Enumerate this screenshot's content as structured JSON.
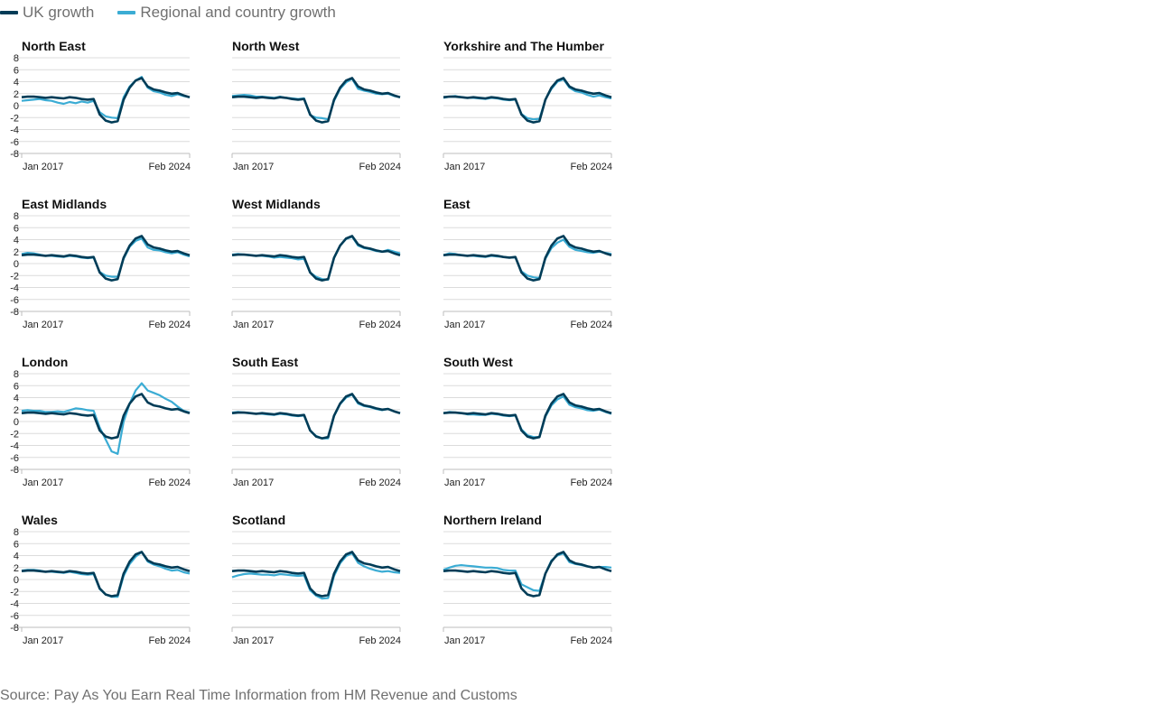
{
  "legend": {
    "uk_label": "UK growth",
    "region_label": "Regional and country growth"
  },
  "colors": {
    "uk": "#003c57",
    "region": "#3bacd4",
    "grid": "#dcdcdc",
    "source_text": "#707070"
  },
  "source": "Source: Pay As You Earn Real Time Information from HM Revenue and Customs",
  "chart_data": {
    "type": "line",
    "layout": "small-multiples 4x3",
    "x_tick_labels": [
      "Jan 2017",
      "Feb 2024"
    ],
    "x": [
      "Jan 2017",
      "Apr 2017",
      "Jul 2017",
      "Oct 2017",
      "Jan 2018",
      "Apr 2018",
      "Jul 2018",
      "Oct 2018",
      "Jan 2019",
      "Apr 2019",
      "Jul 2019",
      "Oct 2019",
      "Jan 2020",
      "Apr 2020",
      "Jul 2020",
      "Oct 2020",
      "Jan 2021",
      "Apr 2021",
      "Jul 2021",
      "Oct 2021",
      "Jan 2022",
      "Apr 2022",
      "Jul 2022",
      "Oct 2022",
      "Jan 2023",
      "Apr 2023",
      "Jul 2023",
      "Oct 2023",
      "Feb 2024"
    ],
    "ylim": [
      -8,
      8
    ],
    "y_ticks": [
      -8,
      -6,
      -4,
      -2,
      0,
      2,
      4,
      6,
      8
    ],
    "grid": true,
    "legend_position": "top-left",
    "uk_series": [
      1.4,
      1.5,
      1.5,
      1.4,
      1.3,
      1.4,
      1.3,
      1.2,
      1.4,
      1.3,
      1.1,
      1.0,
      1.1,
      -1.5,
      -2.5,
      -2.8,
      -2.6,
      1.0,
      3.0,
      4.2,
      4.6,
      3.2,
      2.7,
      2.5,
      2.2,
      2.0,
      2.1,
      1.7,
      1.4
    ],
    "panels": [
      {
        "title": "North East",
        "values": [
          0.8,
          0.9,
          1.0,
          1.1,
          0.9,
          0.8,
          0.5,
          0.3,
          0.6,
          0.4,
          0.7,
          0.5,
          0.8,
          -1.1,
          -1.8,
          -2.0,
          -2.1,
          1.4,
          3.2,
          4.2,
          4.8,
          3.0,
          2.4,
          2.2,
          1.8,
          1.6,
          1.9,
          1.6,
          1.4
        ]
      },
      {
        "title": "North West",
        "values": [
          1.6,
          1.7,
          1.8,
          1.7,
          1.5,
          1.5,
          1.4,
          1.3,
          1.5,
          1.3,
          1.2,
          1.1,
          1.2,
          -1.6,
          -2.0,
          -2.1,
          -2.3,
          0.8,
          2.8,
          3.9,
          4.5,
          2.8,
          2.5,
          2.3,
          2.0,
          1.9,
          2.0,
          1.6,
          1.4
        ]
      },
      {
        "title": "Yorkshire and The Humber",
        "values": [
          1.3,
          1.5,
          1.6,
          1.4,
          1.3,
          1.3,
          1.2,
          1.1,
          1.3,
          1.2,
          1.0,
          0.9,
          1.0,
          -1.4,
          -2.1,
          -2.3,
          -2.2,
          1.0,
          2.8,
          4.0,
          4.4,
          3.0,
          2.4,
          2.2,
          1.8,
          1.5,
          1.7,
          1.4,
          1.2
        ]
      },
      {
        "title": "East Midlands",
        "values": [
          1.6,
          1.8,
          1.7,
          1.5,
          1.3,
          1.3,
          1.2,
          1.1,
          1.3,
          1.2,
          1.0,
          0.9,
          1.0,
          -1.4,
          -2.0,
          -2.2,
          -2.2,
          0.8,
          2.8,
          3.8,
          4.2,
          2.7,
          2.3,
          2.2,
          1.9,
          1.7,
          1.9,
          1.5,
          1.2
        ]
      },
      {
        "title": "West Midlands",
        "values": [
          1.5,
          1.6,
          1.5,
          1.4,
          1.3,
          1.3,
          1.2,
          1.0,
          1.1,
          1.0,
          0.9,
          0.7,
          0.8,
          -1.5,
          -2.2,
          -2.6,
          -2.7,
          0.9,
          3.0,
          4.1,
          4.5,
          3.0,
          2.6,
          2.4,
          2.1,
          2.0,
          2.3,
          2.0,
          1.7
        ]
      },
      {
        "title": "East",
        "values": [
          1.4,
          1.7,
          1.6,
          1.4,
          1.3,
          1.3,
          1.2,
          1.1,
          1.3,
          1.2,
          1.1,
          1.0,
          1.0,
          -1.3,
          -2.0,
          -2.3,
          -2.4,
          0.8,
          2.6,
          3.5,
          4.0,
          2.8,
          2.3,
          2.1,
          1.9,
          1.8,
          2.0,
          1.8,
          1.6
        ]
      },
      {
        "title": "London",
        "values": [
          1.8,
          1.9,
          1.8,
          1.8,
          1.6,
          1.6,
          1.7,
          1.6,
          1.9,
          2.2,
          2.1,
          1.9,
          1.8,
          -1.0,
          -3.0,
          -5.0,
          -5.4,
          0.0,
          3.0,
          5.2,
          6.4,
          5.2,
          4.8,
          4.4,
          3.8,
          3.3,
          2.5,
          1.8,
          1.5
        ]
      },
      {
        "title": "South East",
        "values": [
          1.5,
          1.6,
          1.5,
          1.4,
          1.3,
          1.3,
          1.2,
          1.1,
          1.3,
          1.2,
          1.0,
          0.9,
          1.0,
          -1.5,
          -2.4,
          -2.8,
          -2.8,
          0.9,
          2.9,
          4.0,
          4.5,
          3.0,
          2.6,
          2.4,
          2.1,
          1.9,
          2.1,
          1.7,
          1.4
        ]
      },
      {
        "title": "South West",
        "values": [
          1.4,
          1.6,
          1.5,
          1.4,
          1.2,
          1.2,
          1.1,
          1.1,
          1.3,
          1.2,
          1.0,
          0.9,
          1.0,
          -1.3,
          -2.3,
          -2.6,
          -2.6,
          0.8,
          2.7,
          3.7,
          4.2,
          2.8,
          2.4,
          2.2,
          1.9,
          1.8,
          2.0,
          1.6,
          1.3
        ]
      },
      {
        "title": "Wales",
        "values": [
          1.5,
          1.6,
          1.6,
          1.5,
          1.3,
          1.3,
          1.2,
          1.1,
          1.3,
          1.1,
          0.9,
          0.8,
          0.9,
          -1.6,
          -2.5,
          -2.9,
          -2.9,
          0.6,
          2.6,
          3.8,
          4.6,
          3.0,
          2.5,
          2.2,
          1.8,
          1.5,
          1.6,
          1.2,
          1.0
        ]
      },
      {
        "title": "Scotland",
        "values": [
          0.4,
          0.7,
          0.9,
          1.0,
          0.9,
          0.8,
          0.8,
          0.7,
          0.9,
          0.8,
          0.7,
          0.6,
          0.7,
          -1.8,
          -2.7,
          -3.2,
          -3.1,
          0.6,
          2.7,
          3.9,
          4.4,
          2.8,
          2.2,
          1.8,
          1.5,
          1.3,
          1.4,
          1.2,
          1.1
        ]
      },
      {
        "title": "Northern Ireland",
        "values": [
          1.6,
          2.0,
          2.3,
          2.4,
          2.3,
          2.2,
          2.1,
          2.0,
          2.0,
          1.9,
          1.6,
          1.5,
          1.5,
          -0.8,
          -1.3,
          -1.8,
          -1.9,
          1.0,
          3.2,
          4.0,
          4.4,
          2.9,
          2.6,
          2.4,
          2.2,
          2.0,
          2.1,
          2.1,
          2.0
        ]
      }
    ]
  }
}
